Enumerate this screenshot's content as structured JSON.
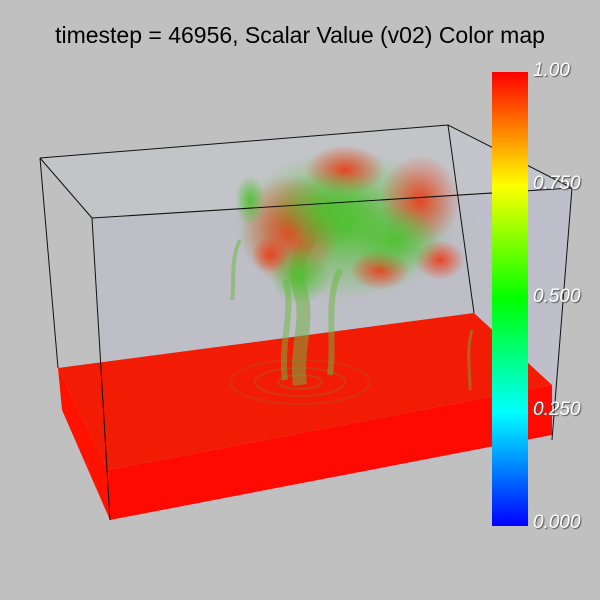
{
  "title": "timestep = 46956, Scalar Value (v02) Color map",
  "colorbar": {
    "ticks": [
      "1.00",
      "0.750",
      "0.500",
      "0.250",
      "0.000"
    ],
    "colors": [
      "#ff0000",
      "#ffff00",
      "#00ff00",
      "#00ffff",
      "#0000ff"
    ]
  },
  "palette": {
    "background": "#c0c0c0",
    "slab": "#ff1a00",
    "plume_green": "#5fc03a",
    "plume_red": "#e84a20"
  }
}
